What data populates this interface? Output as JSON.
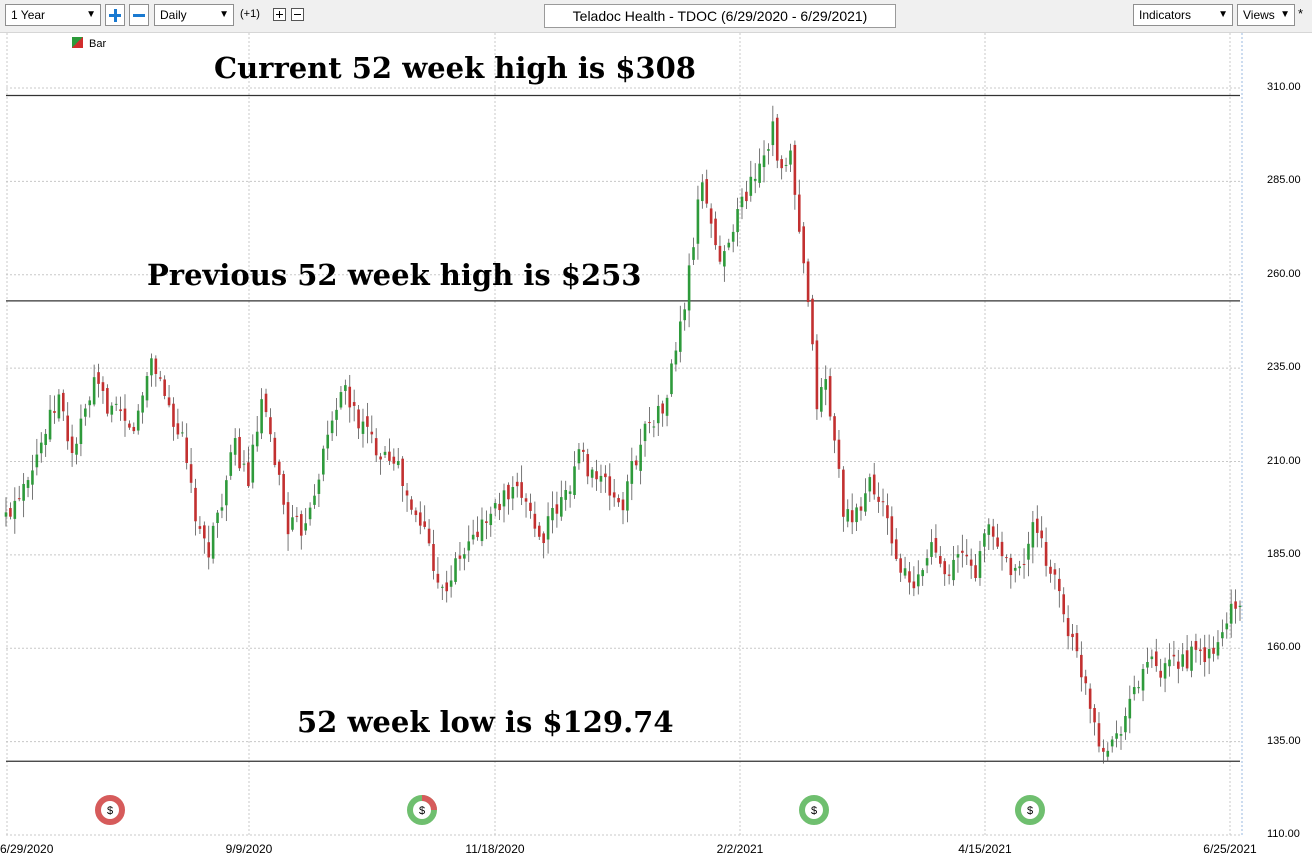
{
  "toolbar": {
    "range_value": "1 Year",
    "interval_value": "Daily",
    "offset_label": "(+1)",
    "indicators_label": "Indicators",
    "views_label": "Views",
    "asterisk": "*"
  },
  "chart_data": {
    "type": "candlestick",
    "title": "Teladoc Health - TDOC (6/29/2020 - 6/29/2021)",
    "legend": [
      "Bar"
    ],
    "ylim": [
      110,
      312
    ],
    "y_ticks": [
      "310.00",
      "285.00",
      "260.00",
      "235.00",
      "210.00",
      "185.00",
      "160.00",
      "135.00",
      "110.00"
    ],
    "x_ticks": [
      "6/29/2020",
      "9/9/2020",
      "11/18/2020",
      "2/2/2021",
      "4/15/2021",
      "6/25/2021"
    ],
    "horizontal_lines": [
      308,
      253,
      129.74
    ],
    "annotations": [
      {
        "text": "Current 52 week high is $308",
        "value": 308
      },
      {
        "text": "Previous 52 week high is $253",
        "value": 253
      },
      {
        "text": "52 week low is $129.74",
        "value": 129.74
      }
    ],
    "dividend_markers": [
      {
        "date": "2020-08-13",
        "symbol": "$",
        "color": "#d65b5b"
      },
      {
        "date": "2020-10-29",
        "symbol": "$",
        "color": "#6fbf6f"
      },
      {
        "date": "2021-02-24",
        "symbol": "$",
        "color": "#6fbf6f"
      },
      {
        "date": "2021-04-28",
        "symbol": "$",
        "color": "#6fbf6f"
      }
    ],
    "colors": {
      "up": "#2e9a3b",
      "down": "#c23030",
      "gridline": "#c8c8c8",
      "level_line": "#333333"
    },
    "series": [
      {
        "name": "Bar",
        "anchors": [
          [
            0,
            195
          ],
          [
            8,
            215
          ],
          [
            12,
            227
          ],
          [
            15,
            212
          ],
          [
            20,
            230
          ],
          [
            28,
            218
          ],
          [
            30,
            222
          ],
          [
            33,
            238
          ],
          [
            40,
            215
          ],
          [
            44,
            189
          ],
          [
            46,
            187
          ],
          [
            52,
            214
          ],
          [
            55,
            205
          ],
          [
            58,
            225
          ],
          [
            61,
            211
          ],
          [
            64,
            193
          ],
          [
            67,
            192
          ],
          [
            70,
            203
          ],
          [
            76,
            230
          ],
          [
            80,
            221
          ],
          [
            84,
            214
          ],
          [
            88,
            212
          ],
          [
            92,
            196
          ],
          [
            95,
            192
          ],
          [
            99,
            175
          ],
          [
            103,
            184
          ],
          [
            108,
            193
          ],
          [
            113,
            200
          ],
          [
            118,
            201
          ],
          [
            121,
            189
          ],
          [
            127,
            201
          ],
          [
            130,
            212
          ],
          [
            134,
            206
          ],
          [
            140,
            198
          ],
          [
            142,
            208
          ],
          [
            146,
            222
          ],
          [
            149,
            223
          ],
          [
            152,
            240
          ],
          [
            154,
            252
          ],
          [
            158,
            286
          ],
          [
            162,
            262
          ],
          [
            164,
            271
          ],
          [
            168,
            282
          ],
          [
            172,
            293
          ],
          [
            174,
            300
          ],
          [
            176,
            286
          ],
          [
            178,
            292
          ],
          [
            180,
            270
          ],
          [
            182,
            252
          ],
          [
            184,
            226
          ],
          [
            186,
            231
          ],
          [
            188,
            215
          ],
          [
            190,
            198
          ],
          [
            192,
            192
          ],
          [
            196,
            205
          ],
          [
            199,
            197
          ],
          [
            203,
            181
          ],
          [
            206,
            175
          ],
          [
            210,
            188
          ],
          [
            214,
            181
          ],
          [
            217,
            185
          ],
          [
            220,
            181
          ],
          [
            223,
            193
          ],
          [
            226,
            185
          ],
          [
            230,
            180
          ],
          [
            233,
            192
          ],
          [
            236,
            184
          ],
          [
            238,
            179
          ],
          [
            240,
            170
          ],
          [
            242,
            161
          ],
          [
            245,
            151
          ],
          [
            248,
            136
          ],
          [
            250,
            133
          ],
          [
            253,
            140
          ],
          [
            256,
            148
          ],
          [
            259,
            157
          ],
          [
            262,
            152
          ],
          [
            266,
            157
          ],
          [
            270,
            158
          ],
          [
            274,
            158
          ],
          [
            278,
            171
          ]
        ]
      }
    ]
  }
}
